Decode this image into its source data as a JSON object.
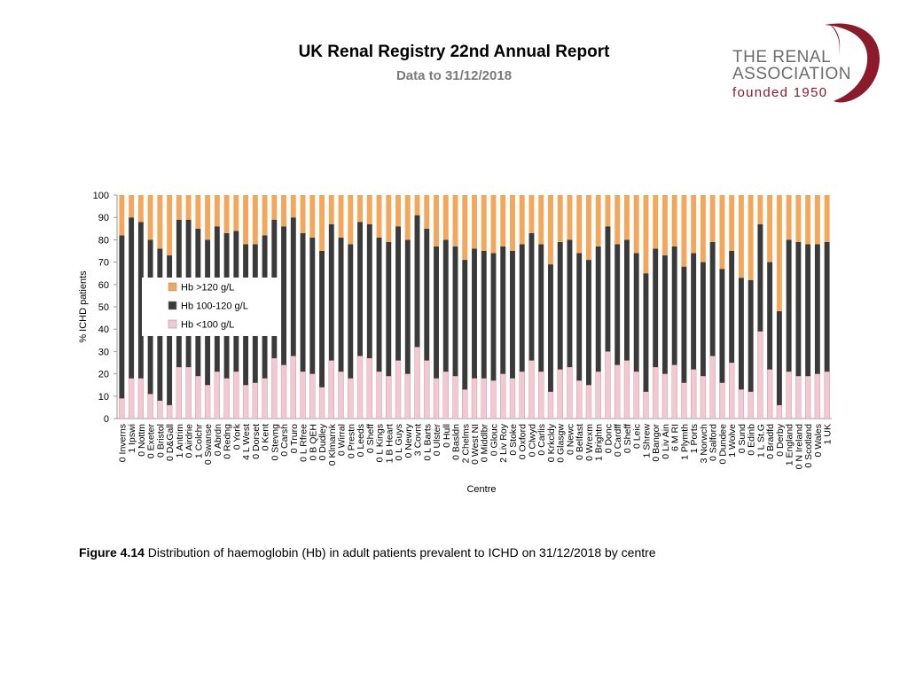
{
  "header": {
    "title": "UK Renal Registry 22nd Annual Report",
    "subtitle": "Data to 31/12/2018"
  },
  "logo": {
    "line1": "THE RENAL",
    "line2": "ASSOCIATION",
    "line3": "founded 1950"
  },
  "caption": {
    "label": "Figure 4.14",
    "text": " Distribution of haemoglobin (Hb) in adult patients prevalent to ICHD on 31/12/2018 by centre"
  },
  "colors": {
    "hb_high": "#F4A75A",
    "hb_mid": "#3A3A3A",
    "hb_low": "#F2C9D2",
    "logo_swirl": "#8B1A2B"
  },
  "chart_data": {
    "type": "bar",
    "stacked": true,
    "ylabel": "% ICHD patients",
    "xlabel": "Centre",
    "ylim": [
      0,
      100
    ],
    "yticks": [
      0,
      10,
      20,
      30,
      40,
      50,
      60,
      70,
      80,
      90,
      100
    ],
    "legend_position": "left",
    "categories": [
      "0 Inverns",
      "1 Ipswi",
      "0 Nottm",
      "0 Exeter",
      "0 Bristol",
      "0 D&Gall",
      "1 Antrim",
      "0 Airdrie",
      "1 Colchr",
      "0 Swanse",
      "0 Abrdn",
      "0 Redng",
      "0 York",
      "4 L West",
      "0 Dorset",
      "0 Kent",
      "0 Stevng",
      "0 Carsh",
      "0 Truro",
      "0 L Rfree",
      "0 B QEH",
      "0 Dudley",
      "0 Klmarnk",
      "0 Wirral",
      "0 Prestn",
      "0 Leeds",
      "0 Sheff",
      "0 L Kings",
      "1 B Heart",
      "0 L Guys",
      "0 Newry",
      "3 Covnt",
      "0 L Barts",
      "0 Ulster",
      "0 Hull",
      "0 Basldn",
      "2 Chelms",
      "0 West NI",
      "0 Middlbr",
      "0 Glouc",
      "2 Liv Roy",
      "0 Stoke",
      "0 Oxford",
      "0 Clwyd",
      "0 Carlis",
      "0 Krkcldy",
      "0 Glasgw",
      "0 Newc",
      "0 Belfast",
      "0 Wrexm",
      "1 Brightn",
      "0 Donc",
      "0 Cardff",
      "0 Sheff",
      "0 Leic",
      "1 Shrew",
      "0 Bangor",
      "0 Liv Ain",
      "6 M RI",
      "1 Plymth",
      "1 Ports",
      "3 Norwch",
      "0 Salford",
      "0 Dundee",
      "1 Wolve",
      "0 Sund",
      "0 Edinb",
      "1 L St.G",
      "0 Bradfd",
      "0 Derby",
      "1 England",
      "0 N Ireland",
      "0 Scotland",
      "0 Wales",
      "1 UK"
    ],
    "series": [
      {
        "name": "Hb <100 g/L",
        "values": [
          9,
          18,
          18,
          11,
          8,
          6,
          23,
          23,
          19,
          15,
          21,
          18,
          21,
          15,
          16,
          18,
          27,
          24,
          28,
          21,
          20,
          14,
          26,
          21,
          18,
          28,
          27,
          21,
          19,
          26,
          20,
          32,
          26,
          18,
          21,
          19,
          13,
          18,
          18,
          17,
          20,
          18,
          21,
          26,
          21,
          12,
          22,
          23,
          17,
          15,
          21,
          30,
          24,
          26,
          21,
          12,
          23,
          20,
          24,
          16,
          22,
          19,
          28,
          16,
          25,
          13,
          12,
          39,
          22,
          6,
          21,
          19,
          19,
          20,
          21
        ]
      },
      {
        "name": "Hb 100-120 g/L",
        "values": [
          73,
          72,
          70,
          69,
          68,
          67,
          66,
          66,
          66,
          65,
          65,
          65,
          63,
          63,
          62,
          64,
          62,
          62,
          62,
          62,
          61,
          61,
          61,
          60,
          60,
          60,
          60,
          60,
          60,
          60,
          60,
          59,
          59,
          59,
          59,
          58,
          58,
          58,
          57,
          57,
          57,
          57,
          57,
          57,
          57,
          57,
          57,
          57,
          57,
          56,
          56,
          56,
          54,
          54,
          53,
          53,
          53,
          53,
          53,
          52,
          52,
          51,
          51,
          51,
          50,
          50,
          50,
          48,
          48,
          42,
          59,
          60,
          59,
          58,
          58
        ]
      }
    ],
    "hb_high_label": "Hb >120 g/L",
    "hb_high_values": [
      18,
      10,
      12,
      20,
      24,
      27,
      11,
      11,
      15,
      20,
      14,
      17,
      16,
      22,
      22,
      18,
      11,
      14,
      10,
      17,
      19,
      25,
      13,
      19,
      22,
      12,
      13,
      19,
      21,
      14,
      20,
      9,
      15,
      23,
      20,
      23,
      29,
      24,
      25,
      26,
      23,
      25,
      22,
      17,
      22,
      31,
      21,
      20,
      26,
      29,
      23,
      14,
      22,
      20,
      26,
      35,
      24,
      27,
      23,
      32,
      26,
      30,
      21,
      33,
      25,
      37,
      38,
      13,
      30,
      52,
      20,
      21,
      22,
      22,
      21
    ]
  }
}
